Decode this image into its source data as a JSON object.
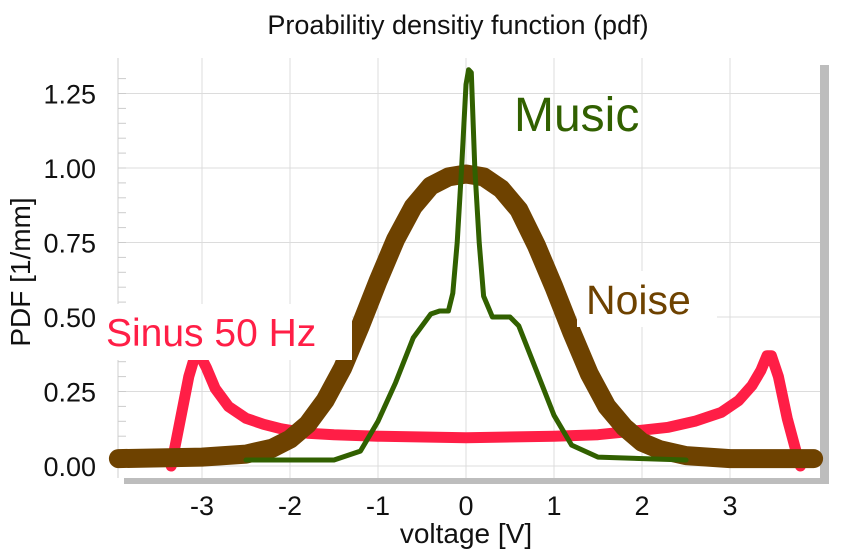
{
  "chart_data": {
    "type": "line",
    "title": "Proabilitiy densitiy function (pdf)",
    "xlabel": "voltage [V]",
    "ylabel": "PDF [1/mm]",
    "xlim": [
      -3.95,
      3.95
    ],
    "ylim": [
      0,
      1.35
    ],
    "x_ticks": [
      -3,
      -2,
      -1,
      0,
      1,
      2,
      3
    ],
    "x_tick_labels": [
      "-3",
      "-2",
      "-1",
      "0",
      "1",
      "2",
      "3"
    ],
    "y_ticks": [
      0,
      0.25,
      0.5,
      0.75,
      1.0,
      1.25
    ],
    "y_tick_labels": [
      "0.00",
      "0.25",
      "0.50",
      "0.75",
      "1.00",
      "1.25"
    ],
    "grid": true,
    "legend": "labels placed on chart",
    "series": [
      {
        "name": "Sinus 50 Hz",
        "color": "#ff1e46",
        "x": [
          -3.35,
          -3.25,
          -3.15,
          -3.08,
          -3.02,
          -2.95,
          -2.85,
          -2.7,
          -2.5,
          -2.3,
          -2.1,
          -1.8,
          -1.5,
          -1.0,
          0.0,
          1.0,
          1.5,
          2.0,
          2.3,
          2.6,
          2.9,
          3.1,
          3.25,
          3.35,
          3.42,
          3.47,
          3.55,
          3.65,
          3.75,
          3.8
        ],
        "y": [
          0.0,
          0.15,
          0.3,
          0.37,
          0.37,
          0.33,
          0.26,
          0.2,
          0.16,
          0.14,
          0.125,
          0.11,
          0.105,
          0.1,
          0.095,
          0.1,
          0.105,
          0.12,
          0.13,
          0.15,
          0.18,
          0.22,
          0.27,
          0.32,
          0.37,
          0.37,
          0.3,
          0.16,
          0.05,
          0.0
        ]
      },
      {
        "name": "Noise",
        "color": "#6e4200",
        "x": [
          -3.95,
          -3.0,
          -2.5,
          -2.2,
          -2.0,
          -1.8,
          -1.6,
          -1.4,
          -1.2,
          -1.0,
          -0.8,
          -0.6,
          -0.4,
          -0.2,
          0.0,
          0.2,
          0.4,
          0.6,
          0.8,
          1.0,
          1.2,
          1.4,
          1.6,
          1.8,
          2.0,
          2.2,
          2.5,
          3.0,
          3.95
        ],
        "y": [
          0.025,
          0.03,
          0.04,
          0.06,
          0.09,
          0.14,
          0.22,
          0.33,
          0.47,
          0.62,
          0.76,
          0.87,
          0.94,
          0.97,
          0.98,
          0.97,
          0.93,
          0.86,
          0.74,
          0.6,
          0.45,
          0.31,
          0.2,
          0.13,
          0.08,
          0.055,
          0.035,
          0.025,
          0.025
        ]
      },
      {
        "name": "Music",
        "color": "#316000",
        "x": [
          -2.5,
          -1.5,
          -1.2,
          -1.0,
          -0.8,
          -0.6,
          -0.4,
          -0.3,
          -0.2,
          -0.15,
          -0.1,
          -0.05,
          0.0,
          0.03,
          0.06,
          0.1,
          0.15,
          0.2,
          0.3,
          0.4,
          0.5,
          0.6,
          0.8,
          1.0,
          1.2,
          1.5,
          2.5
        ],
        "y": [
          0.02,
          0.02,
          0.05,
          0.15,
          0.28,
          0.43,
          0.51,
          0.52,
          0.52,
          0.58,
          0.75,
          1.0,
          1.28,
          1.33,
          1.32,
          1.0,
          0.75,
          0.57,
          0.5,
          0.5,
          0.5,
          0.47,
          0.32,
          0.17,
          0.07,
          0.03,
          0.02
        ]
      }
    ]
  },
  "labels": {
    "music": "Music",
    "noise": "Noise",
    "sinus": "Sinus 50 Hz"
  }
}
